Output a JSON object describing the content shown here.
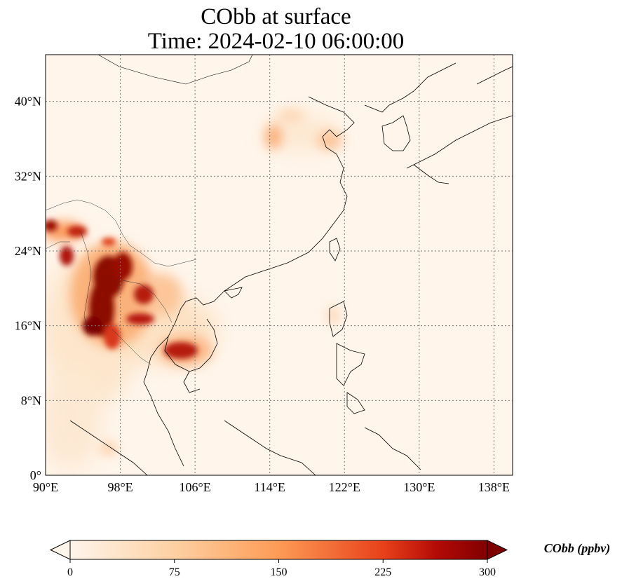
{
  "title_line1": "CObb at surface",
  "title_line2": "Time: 2024-02-10 06:00:00",
  "map": {
    "lon_range": [
      90,
      140
    ],
    "lat_range": [
      0,
      45
    ],
    "lon_ticks": [
      {
        "value": 90,
        "label": "90°E"
      },
      {
        "value": 98,
        "label": "98°E"
      },
      {
        "value": 106,
        "label": "106°E"
      },
      {
        "value": 114,
        "label": "114°E"
      },
      {
        "value": 122,
        "label": "122°E"
      },
      {
        "value": 130,
        "label": "130°E"
      },
      {
        "value": 138,
        "label": "138°E"
      }
    ],
    "lat_ticks": [
      {
        "value": 0,
        "label": "0°"
      },
      {
        "value": 8,
        "label": "8°N"
      },
      {
        "value": 16,
        "label": "16°N"
      },
      {
        "value": 24,
        "label": "24°N"
      },
      {
        "value": 32,
        "label": "32°N"
      },
      {
        "value": 40,
        "label": "40°N"
      }
    ],
    "gridlines": true
  },
  "colorbar": {
    "title": "CObb (ppbv)",
    "ticks": [
      {
        "value": 0,
        "label": "0"
      },
      {
        "value": 75,
        "label": "75"
      },
      {
        "value": 150,
        "label": "150"
      },
      {
        "value": 225,
        "label": "225"
      },
      {
        "value": 300,
        "label": "300"
      }
    ],
    "range": [
      0,
      300
    ],
    "extend": "both",
    "colors": [
      "#fff5eb",
      "#fdd0a2",
      "#fd8d3c",
      "#d94801",
      "#8c0d04",
      "#7f0000"
    ]
  }
}
